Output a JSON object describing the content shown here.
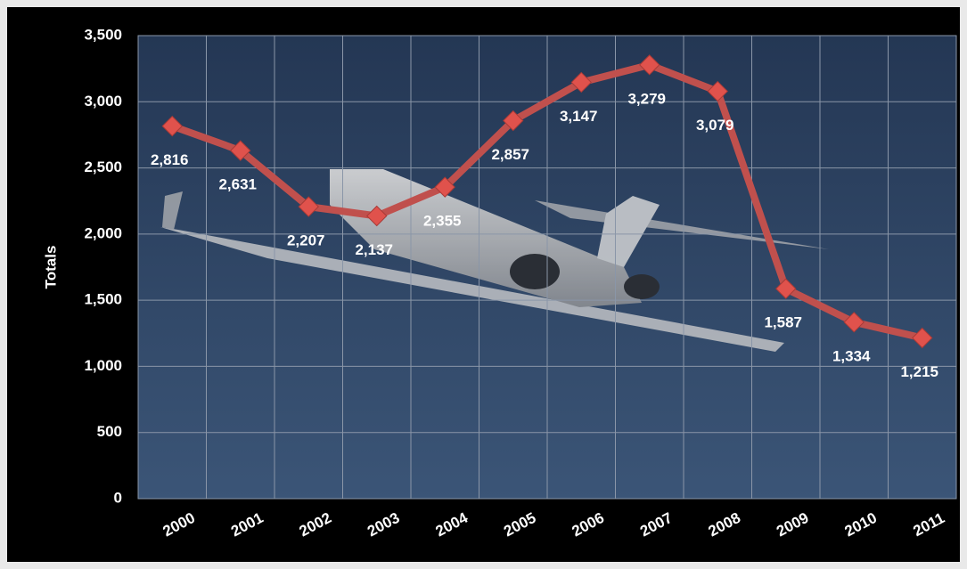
{
  "chart_data": {
    "type": "line",
    "y_label": "Totals",
    "categories": [
      "2000",
      "2001",
      "2002",
      "2003",
      "2004",
      "2005",
      "2006",
      "2007",
      "2008",
      "2009",
      "2010",
      "2011"
    ],
    "series": [
      {
        "name": "Totals",
        "color": "#c0504d",
        "values": [
          2816,
          2631,
          2207,
          2137,
          2355,
          2857,
          3147,
          3279,
          3079,
          1587,
          1334,
          1215
        ],
        "value_labels": [
          "2,816",
          "2,631",
          "2,207",
          "2,137",
          "2,355",
          "2,857",
          "3,147",
          "3,279",
          "3,079",
          "1,587",
          "1,334",
          "1,215"
        ]
      }
    ],
    "ylim": [
      0,
      3500
    ],
    "yticks": [
      0,
      {
        "value": 500,
        "label": "500"
      },
      {
        "value": 1000,
        "label": "1,000"
      },
      {
        "value": 1500,
        "label": "1,500"
      },
      {
        "value": 2000,
        "label": "2,000"
      },
      {
        "value": 2500,
        "label": "2,500"
      },
      {
        "value": 3000,
        "label": "3,000"
      },
      {
        "value": 3500,
        "label": "3,500"
      }
    ],
    "grid": true
  }
}
